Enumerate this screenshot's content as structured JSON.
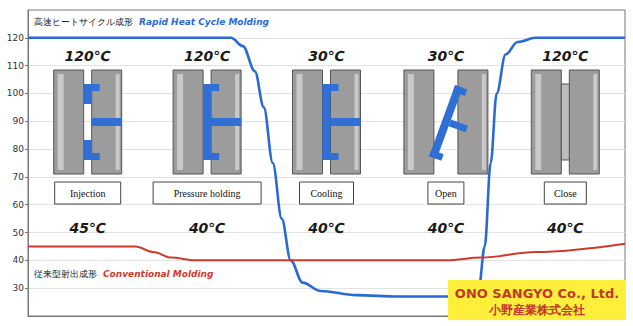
{
  "chart_data": {
    "type": "line",
    "series": [
      {
        "name": "Rapid Heat Cycle Molding",
        "name_ja": "高速ヒートサイクル成形",
        "color": "#2a6ad4",
        "x": [
          0,
          34,
          36,
          38,
          39.5,
          41,
          42.5,
          44,
          46,
          49,
          55,
          62,
          70,
          74,
          75.5,
          76.5,
          77.5,
          78.5,
          80,
          82,
          85,
          100
        ],
        "values": [
          120,
          120,
          117,
          108,
          95,
          75,
          55,
          40,
          32,
          29,
          27.5,
          27,
          27,
          27.5,
          30,
          45,
          75,
          100,
          114,
          118.5,
          120,
          120
        ]
      },
      {
        "name": "Conventional Molding",
        "name_ja": "従来型射出成形",
        "color": "#d03a2a",
        "x": [
          0,
          18,
          21,
          24,
          28,
          70,
          76,
          85,
          100
        ],
        "values": [
          45,
          45,
          43,
          41,
          40,
          40,
          41,
          43,
          46
        ]
      }
    ],
    "stages": [
      {
        "name": "Injection",
        "rapid": "120℃",
        "conventional": "45℃"
      },
      {
        "name": "Pressure holding",
        "rapid": "120℃",
        "conventional": "40℃"
      },
      {
        "name": "Cooling",
        "rapid": "30℃",
        "conventional": "40℃"
      },
      {
        "name": "Open",
        "rapid": "30℃",
        "conventional": "40℃"
      },
      {
        "name": "Close",
        "rapid": "120℃",
        "conventional": "40℃"
      }
    ],
    "company": {
      "name_en": "ONO SANGYO Co., Ltd.",
      "name_ja": "小野産業株式会社"
    },
    "xlim": [
      0,
      100
    ],
    "ylim": [
      20,
      130
    ],
    "yticks": [
      30,
      40,
      50,
      60,
      70,
      80,
      90,
      100,
      110,
      120
    ],
    "tick_labels": "y",
    "grid": true
  }
}
